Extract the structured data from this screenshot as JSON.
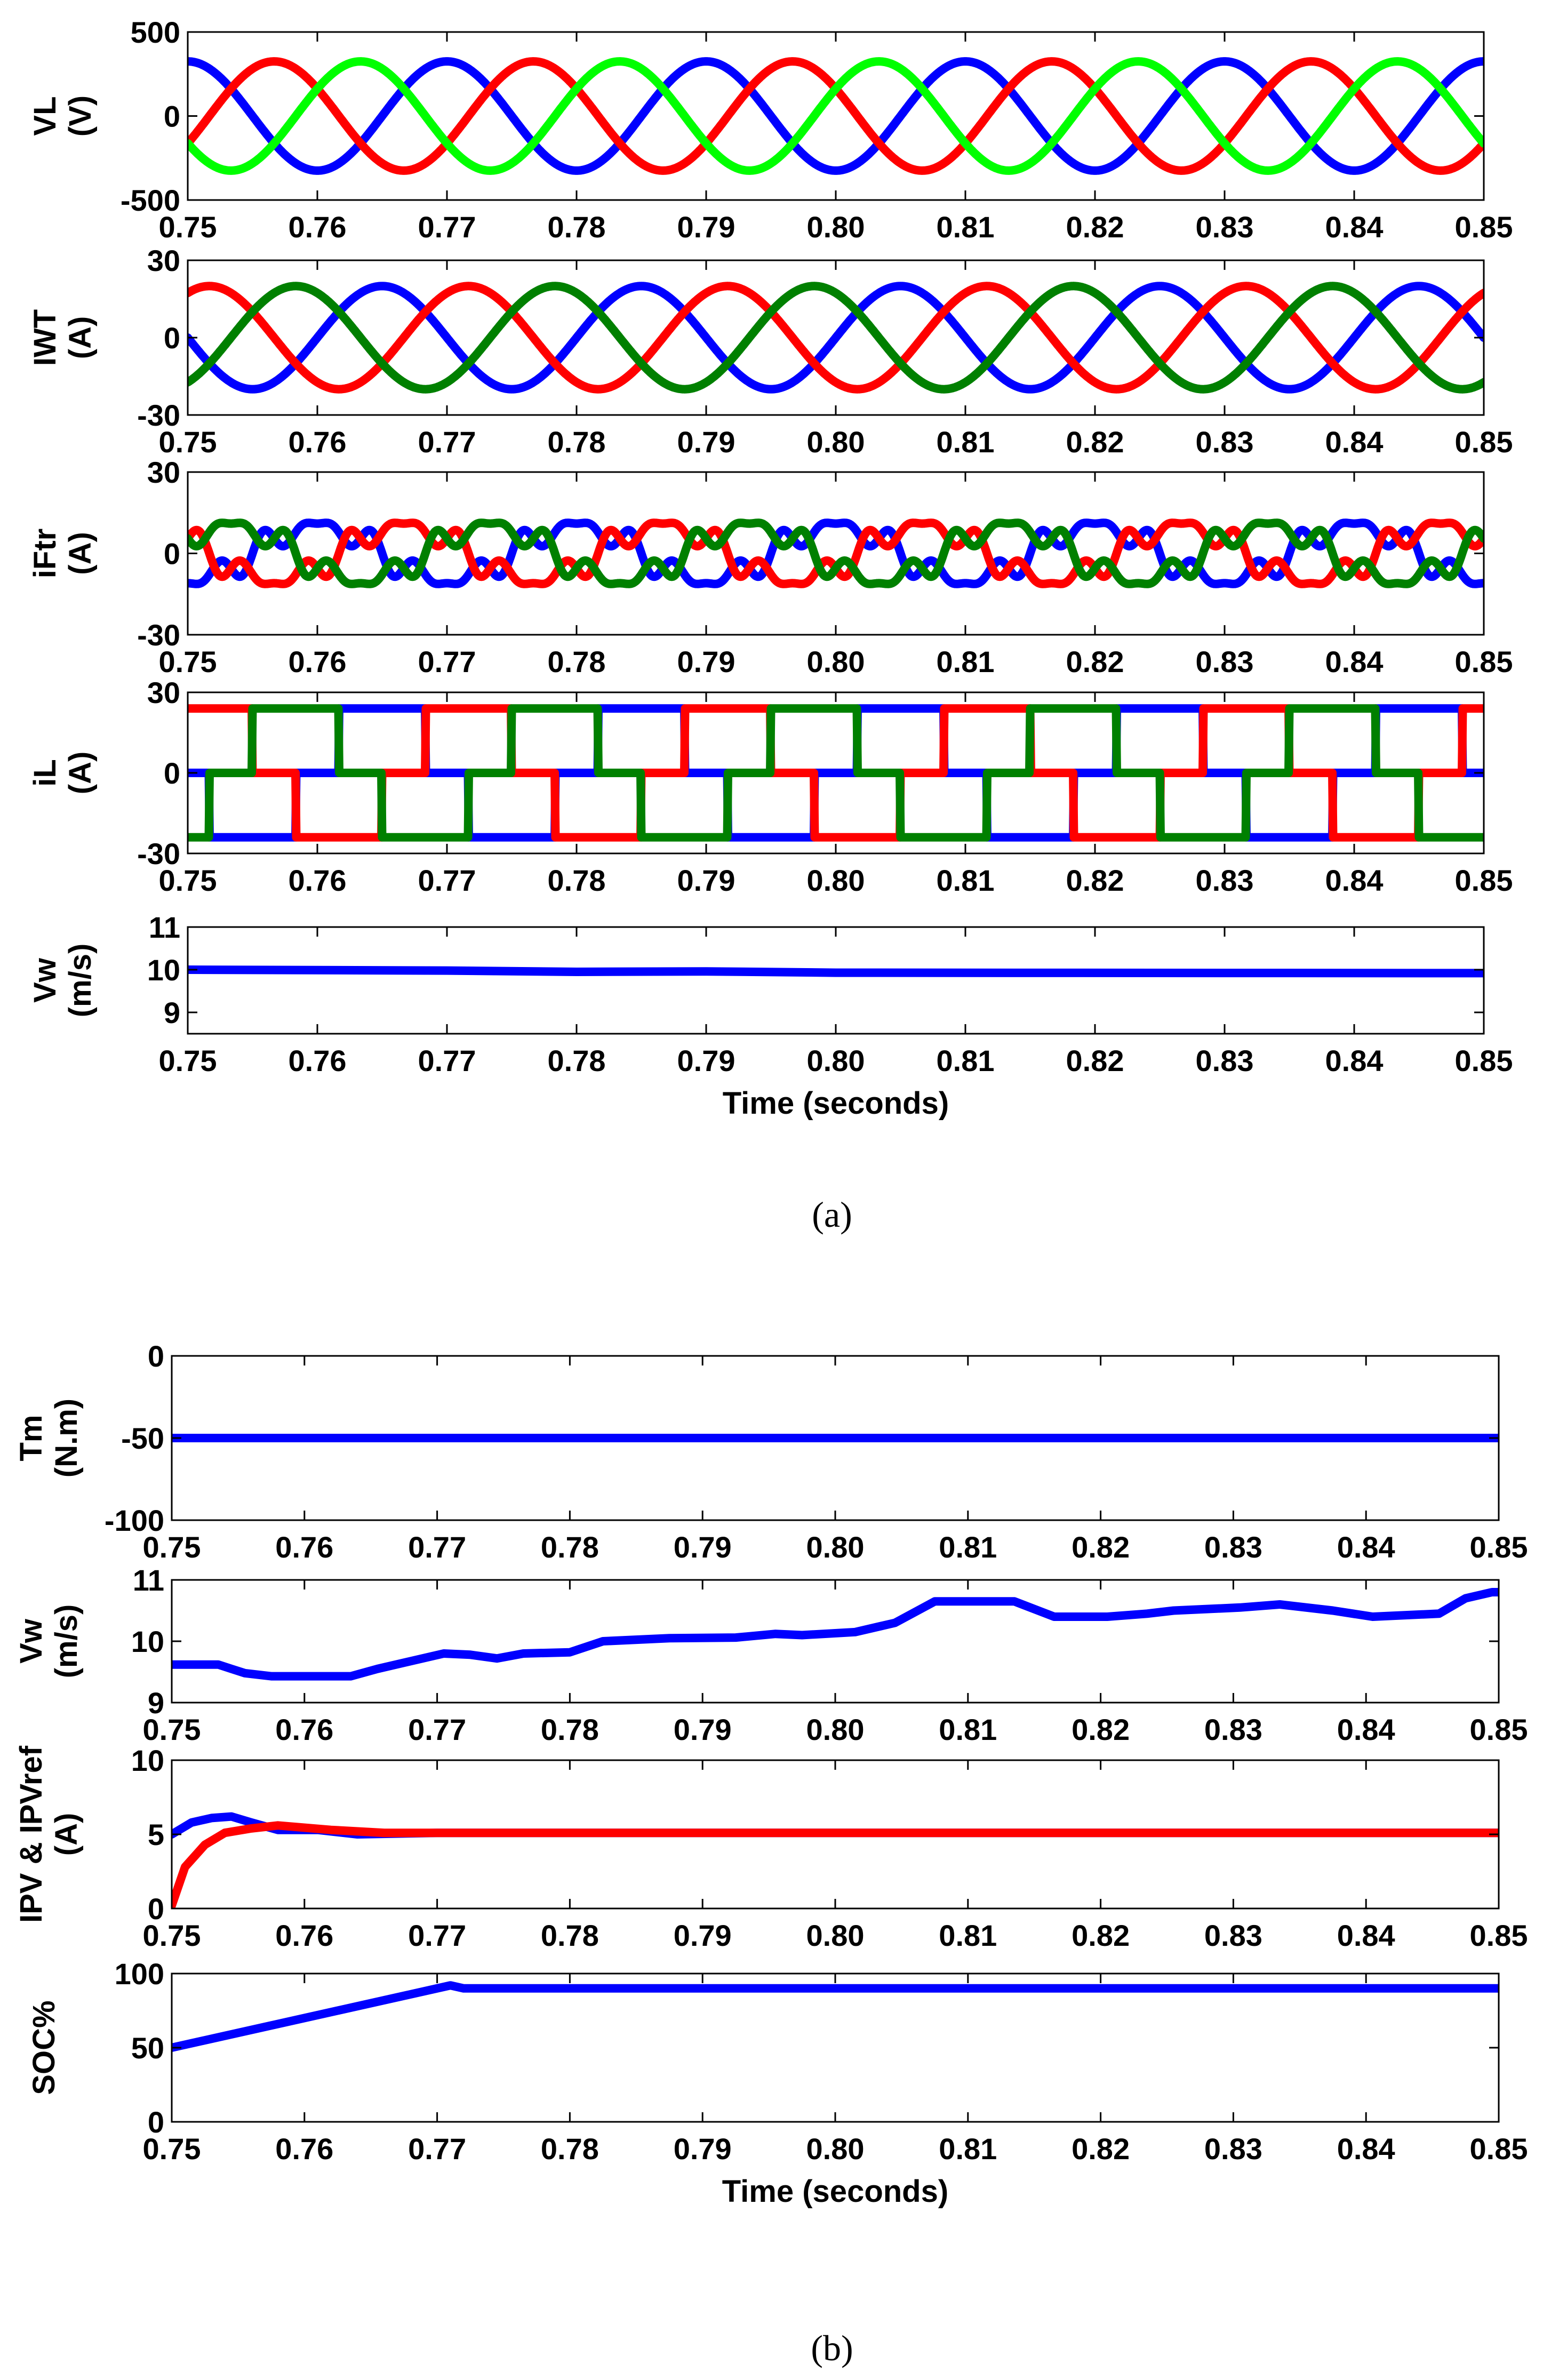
{
  "chart_data": [
    {
      "figure": "a",
      "type": "line",
      "panel": "VL",
      "ylabel_lines": [
        "VL",
        "(V)"
      ],
      "ylim": [
        -500,
        500
      ],
      "yticks": [
        "500",
        "0",
        "-500"
      ],
      "ytick_values": [
        500,
        0,
        -500
      ],
      "x_ticks": [
        "0.75",
        "0.76",
        "0.77",
        "0.78",
        "0.79",
        "0.80",
        "0.81",
        "0.82",
        "0.83",
        "0.84",
        "0.85"
      ],
      "xlim": [
        0.75,
        0.85
      ],
      "series": [
        {
          "name": "phase-blue",
          "color": "#0000ff",
          "kind": "sine",
          "amplitude": 325,
          "frequency": 50,
          "phase_deg": -90
        },
        {
          "name": "phase-red",
          "color": "#ff0000",
          "kind": "sine",
          "amplitude": 325,
          "frequency": 50,
          "phase_deg": 150
        },
        {
          "name": "phase-green",
          "color": "#00ff00",
          "kind": "sine",
          "amplitude": 325,
          "frequency": 50,
          "phase_deg": 30
        }
      ]
    },
    {
      "figure": "a",
      "type": "line",
      "panel": "IWT",
      "ylabel_lines": [
        "IWT",
        "(A)"
      ],
      "ylim": [
        -30,
        30
      ],
      "yticks": [
        "30",
        "0",
        "-30"
      ],
      "ytick_values": [
        30,
        0,
        -30
      ],
      "x_ticks": [
        "0.75",
        "0.76",
        "0.77",
        "0.78",
        "0.79",
        "0.80",
        "0.81",
        "0.82",
        "0.83",
        "0.84",
        "0.85"
      ],
      "xlim": [
        0.75,
        0.85
      ],
      "series": [
        {
          "name": "phase-blue",
          "color": "#0000ff",
          "kind": "sine",
          "amplitude": 20,
          "frequency": 50,
          "phase_deg": 0
        },
        {
          "name": "phase-red",
          "color": "#ff0000",
          "kind": "sine",
          "amplitude": 20,
          "frequency": 50,
          "phase_deg": -120
        },
        {
          "name": "phase-green",
          "color": "#008000",
          "kind": "sine",
          "amplitude": 20,
          "frequency": 50,
          "phase_deg": 120
        }
      ]
    },
    {
      "figure": "a",
      "type": "line",
      "panel": "iFtr",
      "ylabel_lines": [
        "iFtr",
        "(A)"
      ],
      "ylim": [
        -30,
        30
      ],
      "yticks": [
        "30",
        "0",
        "-30"
      ],
      "ytick_values": [
        30,
        0,
        -30
      ],
      "x_ticks": [
        "0.75",
        "0.76",
        "0.77",
        "0.78",
        "0.79",
        "0.80",
        "0.81",
        "0.82",
        "0.83",
        "0.84",
        "0.85"
      ],
      "xlim": [
        0.75,
        0.85
      ],
      "series": [
        {
          "name": "phase-blue",
          "color": "#0000ff",
          "kind": "distorted",
          "amplitude": 12,
          "frequency": 50,
          "phase_deg": 90,
          "harmonics": [
            [
              5,
              0.35
            ],
            [
              7,
              0.25
            ]
          ]
        },
        {
          "name": "phase-red",
          "color": "#ff0000",
          "kind": "distorted",
          "amplitude": 12,
          "frequency": 50,
          "phase_deg": -30,
          "harmonics": [
            [
              5,
              0.35
            ],
            [
              7,
              0.25
            ]
          ]
        },
        {
          "name": "phase-green",
          "color": "#008000",
          "kind": "distorted",
          "amplitude": 12,
          "frequency": 50,
          "phase_deg": 210,
          "harmonics": [
            [
              5,
              0.35
            ],
            [
              7,
              0.25
            ]
          ]
        }
      ]
    },
    {
      "figure": "a",
      "type": "line",
      "panel": "iL",
      "ylabel_lines": [
        "iL",
        "(A)"
      ],
      "ylim": [
        -30,
        30
      ],
      "yticks": [
        "30",
        "0",
        "-30"
      ],
      "ytick_values": [
        30,
        0,
        -30
      ],
      "x_ticks": [
        "0.75",
        "0.76",
        "0.77",
        "0.78",
        "0.79",
        "0.80",
        "0.81",
        "0.82",
        "0.83",
        "0.84",
        "0.85"
      ],
      "xlim": [
        0.75,
        0.85
      ],
      "series": [
        {
          "name": "phase-blue",
          "color": "#0000ff",
          "kind": "six-step",
          "amplitude": 24,
          "frequency": 50,
          "phase_deg": 0
        },
        {
          "name": "phase-red",
          "color": "#ff0000",
          "kind": "six-step",
          "amplitude": 24,
          "frequency": 50,
          "phase_deg": -120
        },
        {
          "name": "phase-green",
          "color": "#008000",
          "kind": "six-step",
          "amplitude": 24,
          "frequency": 50,
          "phase_deg": 120
        }
      ]
    },
    {
      "figure": "a",
      "type": "line",
      "panel": "Vw",
      "ylabel_lines": [
        "Vw",
        "(m/s)"
      ],
      "ylim": [
        8.5,
        11
      ],
      "yticks": [
        "11",
        "10",
        "9"
      ],
      "ytick_values": [
        11,
        10,
        9
      ],
      "x_ticks": [
        "0.75",
        "0.76",
        "0.77",
        "0.78",
        "0.79",
        "0.80",
        "0.81",
        "0.82",
        "0.83",
        "0.84",
        "0.85"
      ],
      "xlim": [
        0.75,
        0.85
      ],
      "xlabel": "Time (seconds)",
      "series": [
        {
          "name": "wind-speed",
          "color": "#0000ff",
          "kind": "points",
          "x": [
            0.75,
            0.77,
            0.78,
            0.79,
            0.8,
            0.85
          ],
          "y": [
            10.0,
            9.98,
            9.95,
            9.96,
            9.93,
            9.92
          ]
        }
      ]
    },
    {
      "figure": "b",
      "type": "line",
      "panel": "Tm",
      "ylabel_lines": [
        "Tm",
        "(N.m)"
      ],
      "ylim": [
        -100,
        0
      ],
      "yticks": [
        "0",
        "-50",
        "-100"
      ],
      "ytick_values": [
        0,
        -50,
        -100
      ],
      "x_ticks": [
        "0.75",
        "0.76",
        "0.77",
        "0.78",
        "0.79",
        "0.80",
        "0.81",
        "0.82",
        "0.83",
        "0.84",
        "0.85"
      ],
      "xlim": [
        0.75,
        0.85
      ],
      "series": [
        {
          "name": "mechanical-torque",
          "color": "#0000ff",
          "kind": "points",
          "x": [
            0.75,
            0.85
          ],
          "y": [
            -50,
            -50
          ]
        }
      ]
    },
    {
      "figure": "b",
      "type": "line",
      "panel": "Vw",
      "ylabel_lines": [
        "Vw",
        "(m/s)"
      ],
      "ylim": [
        9,
        11
      ],
      "yticks": [
        "11",
        "10",
        "9"
      ],
      "ytick_values": [
        11,
        10,
        9
      ],
      "x_ticks": [
        "0.75",
        "0.76",
        "0.77",
        "0.78",
        "0.79",
        "0.80",
        "0.81",
        "0.82",
        "0.83",
        "0.84",
        "0.85"
      ],
      "xlim": [
        0.75,
        0.85
      ],
      "series": [
        {
          "name": "wind-speed",
          "color": "#0000ff",
          "kind": "points",
          "x": [
            0.75,
            0.7535,
            0.7545,
            0.7555,
            0.7575,
            0.7635,
            0.7655,
            0.7705,
            0.7725,
            0.7745,
            0.7765,
            0.78,
            0.7825,
            0.7875,
            0.7925,
            0.7955,
            0.7975,
            0.8015,
            0.8045,
            0.8075,
            0.8135,
            0.8165,
            0.8205,
            0.8235,
            0.8255,
            0.8305,
            0.8335,
            0.8375,
            0.8405,
            0.8455,
            0.8475,
            0.8495,
            0.85
          ],
          "y": [
            9.62,
            9.62,
            9.55,
            9.48,
            9.43,
            9.43,
            9.55,
            9.8,
            9.78,
            9.72,
            9.8,
            9.82,
            10.0,
            10.05,
            10.06,
            10.12,
            10.1,
            10.15,
            10.3,
            10.65,
            10.65,
            10.4,
            10.4,
            10.45,
            10.5,
            10.55,
            10.6,
            10.5,
            10.4,
            10.45,
            10.7,
            10.8,
            10.8
          ]
        }
      ]
    },
    {
      "figure": "b",
      "type": "line",
      "panel": "IPV",
      "ylabel_lines": [
        "IPV & IPVref",
        "(A)"
      ],
      "ylim": [
        0,
        10
      ],
      "yticks": [
        "10",
        "5",
        "0"
      ],
      "ytick_values": [
        10,
        5,
        0
      ],
      "x_ticks": [
        "0.75",
        "0.76",
        "0.77",
        "0.78",
        "0.79",
        "0.80",
        "0.81",
        "0.82",
        "0.83",
        "0.84",
        "0.85"
      ],
      "xlim": [
        0.75,
        0.85
      ],
      "series": [
        {
          "name": "IPV",
          "color": "#0000ff",
          "kind": "points",
          "x": [
            0.75,
            0.7515,
            0.753,
            0.7545,
            0.756,
            0.758,
            0.761,
            0.764,
            0.77,
            0.85
          ],
          "y": [
            5.0,
            5.8,
            6.1,
            6.2,
            5.8,
            5.3,
            5.3,
            5.0,
            5.1,
            5.1
          ]
        },
        {
          "name": "IPVref",
          "color": "#ff0000",
          "kind": "points",
          "x": [
            0.75,
            0.751,
            0.7525,
            0.754,
            0.756,
            0.758,
            0.762,
            0.766,
            0.85
          ],
          "y": [
            0.2,
            2.8,
            4.3,
            5.1,
            5.4,
            5.6,
            5.3,
            5.1,
            5.1
          ]
        }
      ]
    },
    {
      "figure": "b",
      "type": "line",
      "panel": "SOC",
      "ylabel_lines": [
        "SOC%"
      ],
      "ylim": [
        0,
        100
      ],
      "yticks": [
        "100",
        "50",
        "0"
      ],
      "ytick_values": [
        100,
        50,
        0
      ],
      "x_ticks": [
        "0.75",
        "0.76",
        "0.77",
        "0.78",
        "0.79",
        "0.80",
        "0.81",
        "0.82",
        "0.83",
        "0.84",
        "0.85"
      ],
      "xlim": [
        0.75,
        0.85
      ],
      "xlabel": "Time (seconds)",
      "series": [
        {
          "name": "state-of-charge",
          "color": "#0000ff",
          "kind": "points",
          "x": [
            0.75,
            0.771,
            0.772,
            0.85
          ],
          "y": [
            50,
            92,
            90,
            90
          ]
        }
      ]
    }
  ],
  "captions": {
    "a": "(a)",
    "b": "(b)"
  }
}
